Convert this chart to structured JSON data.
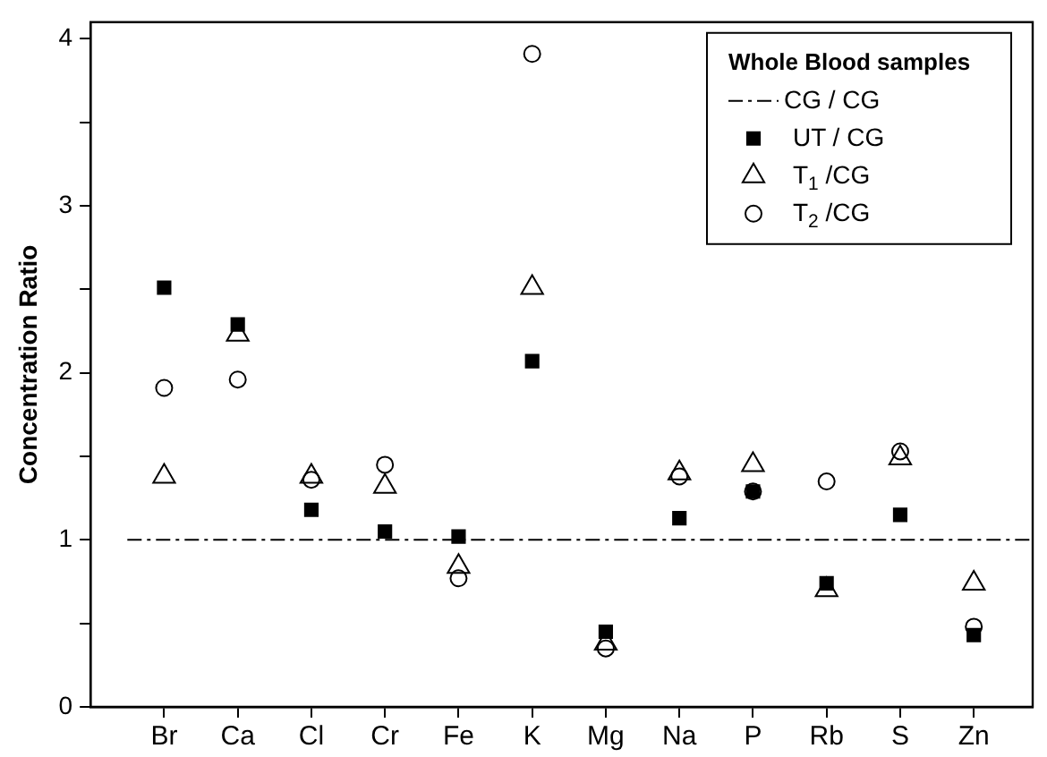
{
  "chart_data": {
    "type": "scatter",
    "ylabel": "Concentration Ratio",
    "legend_title": "Whole Blood samples",
    "legend": "top right",
    "grid": false,
    "categories": [
      "Br",
      "Ca",
      "Cl",
      "Cr",
      "Fe",
      "K",
      "Mg",
      "Na",
      "P",
      "Rb",
      "S",
      "Zn"
    ],
    "ylim": [
      0,
      4.1
    ],
    "yticks": [
      0,
      {
        "value": 0.5,
        "label": null
      },
      1,
      {
        "value": 1.5,
        "label": null
      },
      2,
      {
        "value": 2.5,
        "label": null
      },
      3,
      {
        "value": 3.5,
        "label": null
      },
      4
    ],
    "ref_lines": [
      {
        "axis": "y",
        "value": 1,
        "label": "CG / CG",
        "color": "#000000",
        "line_style": "dashed"
      }
    ],
    "series": [
      {
        "name": "UT / CG",
        "color": "#000000",
        "marker": "square",
        "values": [
          2.51,
          2.29,
          1.18,
          1.05,
          1.02,
          2.07,
          0.45,
          1.13,
          1.29,
          0.74,
          1.15,
          0.43
        ]
      },
      {
        "name": "T$_{1}$ /CG",
        "color": "#000000",
        "marker": "triangle",
        "values": [
          1.38,
          2.23,
          1.38,
          1.32,
          0.84,
          2.51,
          0.38,
          1.4,
          1.45,
          0.7,
          1.49,
          0.74
        ]
      },
      {
        "name": "T$_{2}$ /CG",
        "color": "#000000",
        "marker": "circle",
        "values": [
          1.91,
          1.96,
          1.36,
          1.45,
          0.77,
          3.91,
          0.35,
          1.38,
          1.29,
          1.35,
          1.53,
          0.48
        ]
      }
    ]
  }
}
